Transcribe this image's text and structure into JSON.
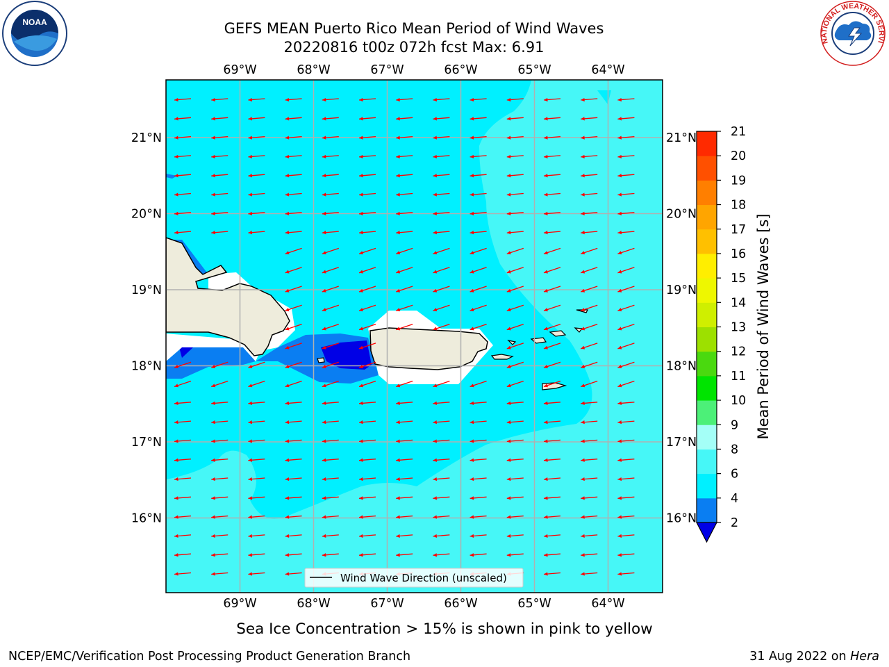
{
  "title": {
    "line1": "GEFS MEAN Puerto Rico Mean Period of Wind Waves",
    "line2": "20220816 t00z 072h fcst   Max: 6.91"
  },
  "logos": {
    "left": {
      "name": "noaa-logo",
      "text": "NOAA"
    },
    "right": {
      "name": "nws-logo",
      "text": "NATIONAL WEATHER SERVICE"
    }
  },
  "map": {
    "lon_labels": [
      "69°W",
      "68°W",
      "67°W",
      "66°W",
      "65°W",
      "64°W"
    ],
    "lat_labels": [
      "21°N",
      "20°N",
      "19°N",
      "18°N",
      "17°N",
      "16°N"
    ],
    "legend_label": "Wind Wave Direction (unscaled)",
    "land_color": "#eeecdc",
    "sea_colors": {
      "lt4": "#0a7ef2",
      "lt2": "#0000e6",
      "4to6": "#00f0ff",
      "6to8": "#46f7f7"
    },
    "arrow_color": "#ff0000"
  },
  "colorbar": {
    "label": "Mean Period of Wind Waves [s]",
    "ticks": [
      "2",
      "4",
      "6",
      "8",
      "9",
      "10",
      "11",
      "12",
      "13",
      "14",
      "15",
      "16",
      "17",
      "18",
      "19",
      "20",
      "21"
    ],
    "colors": [
      "#0a7ef2",
      "#00f0ff",
      "#46f7f7",
      "#a4fff7",
      "#4cf078",
      "#00e400",
      "#4ad90f",
      "#9de000",
      "#cfef00",
      "#eef700",
      "#ffee00",
      "#ffc000",
      "#ffa500",
      "#ff7f00",
      "#ff5000",
      "#ff2a00"
    ],
    "under_color": "#0000e6"
  },
  "footer": {
    "note": "Sea Ice Concentration > 15% is shown in pink to yellow",
    "left": "NCEP/EMC/Verification Post Processing Product Generation Branch",
    "date": "31 Aug 2022 on ",
    "machine": "Hera"
  }
}
